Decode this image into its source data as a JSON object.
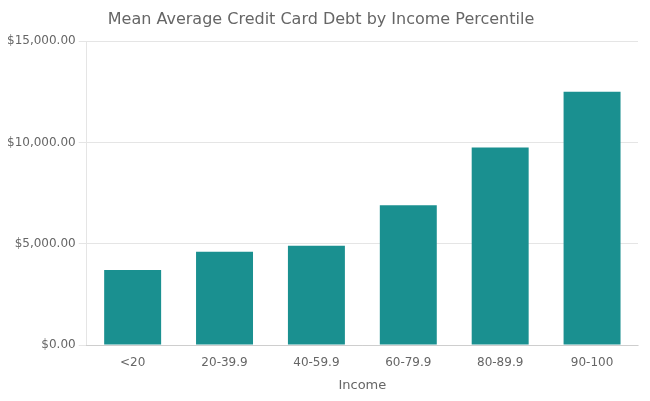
{
  "chart_data": {
    "type": "bar",
    "title": "Mean Average Credit Card Debt by Income Percentile",
    "xlabel": "Income",
    "categories": [
      "<20",
      "20-39.9",
      "40-59.9",
      "60-79.9",
      "80-89.9",
      "90-100"
    ],
    "values": [
      3700,
      4600,
      4900,
      6900,
      9750,
      12500
    ],
    "color": "#1a9090",
    "ylim": [
      0,
      15000
    ],
    "yticks": [
      {
        "value": 0,
        "label": "$0.00"
      },
      {
        "value": 5000,
        "label": "$5,000.00"
      },
      {
        "value": 10000,
        "label": "$10,000.00"
      },
      {
        "value": 15000,
        "label": "$15,000.00"
      }
    ],
    "grid": true
  }
}
